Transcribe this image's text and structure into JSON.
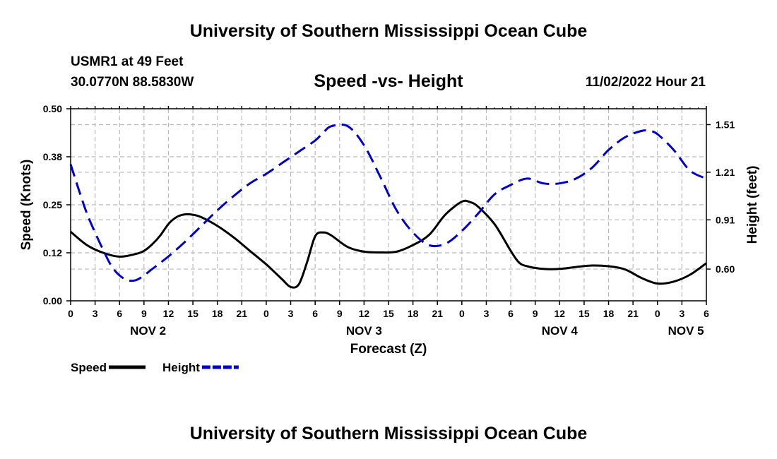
{
  "header": {
    "title": "University of Southern Mississippi Ocean Cube",
    "station": "USMR1 at 49 Feet",
    "coordinates": "30.0770N  88.5830W",
    "datetime": "11/02/2022 Hour 21"
  },
  "footer": {
    "title": "University of Southern Mississippi Ocean Cube"
  },
  "chart_data": {
    "type": "line",
    "title": "Speed -vs- Height",
    "xlabel": "Forecast (Z)",
    "ylabel_left": "Speed (Knots)",
    "ylabel_right": "Height (feet)",
    "x_range_hours": [
      0,
      78
    ],
    "x_ticks_hours": [
      0,
      3,
      6,
      9,
      12,
      15,
      18,
      21,
      24,
      27,
      30,
      33,
      36,
      39,
      42,
      45,
      48,
      51,
      54,
      57,
      60,
      63,
      66,
      69,
      72,
      75,
      78
    ],
    "x_tick_labels": [
      "0",
      "3",
      "6",
      "9",
      "12",
      "15",
      "18",
      "21",
      "0",
      "3",
      "6",
      "9",
      "12",
      "15",
      "18",
      "21",
      "0",
      "3",
      "6",
      "9",
      "12",
      "15",
      "18",
      "21",
      "0",
      "3",
      "6"
    ],
    "day_labels": [
      {
        "label": "NOV 2",
        "hour": 9.5
      },
      {
        "label": "NOV 3",
        "hour": 36
      },
      {
        "label": "NOV 4",
        "hour": 60
      },
      {
        "label": "NOV 5",
        "hour": 75.5
      }
    ],
    "y_left": {
      "range": [
        0,
        0.5
      ],
      "ticks": [
        0,
        0.125,
        0.25,
        0.375,
        0.5
      ],
      "tick_labels": [
        "0.00",
        "0.12",
        "0.25",
        "0.38",
        "0.50"
      ]
    },
    "y_right": {
      "range": [
        0.4,
        1.61
      ],
      "ticks": [
        0.6,
        0.91,
        1.21,
        1.51
      ],
      "tick_labels": [
        "0.60",
        "0.91",
        "1.21",
        "1.51"
      ]
    },
    "grid": true,
    "series": [
      {
        "name": "Speed",
        "axis": "left",
        "color": "#000000",
        "style": "solid",
        "x": [
          0,
          2,
          4,
          6,
          8,
          9,
          10,
          11,
          12,
          13,
          14,
          15,
          16,
          18,
          20,
          22,
          24,
          25,
          26,
          27,
          28,
          29,
          30,
          31,
          32,
          34,
          36,
          38,
          40,
          42,
          44,
          46,
          48,
          49,
          50,
          52,
          54,
          55,
          56,
          58,
          60,
          62,
          64,
          66,
          68,
          70,
          72,
          74,
          76,
          78
        ],
        "y": [
          0.18,
          0.145,
          0.125,
          0.115,
          0.122,
          0.13,
          0.147,
          0.17,
          0.2,
          0.218,
          0.225,
          0.224,
          0.218,
          0.195,
          0.165,
          0.13,
          0.095,
          0.075,
          0.055,
          0.036,
          0.043,
          0.1,
          0.168,
          0.178,
          0.17,
          0.14,
          0.128,
          0.126,
          0.128,
          0.145,
          0.172,
          0.225,
          0.258,
          0.257,
          0.245,
          0.2,
          0.13,
          0.1,
          0.09,
          0.083,
          0.083,
          0.088,
          0.092,
          0.09,
          0.082,
          0.06,
          0.045,
          0.05,
          0.068,
          0.098
        ]
      },
      {
        "name": "Height",
        "axis": "right",
        "color": "#0000cc",
        "style": "dashed",
        "x": [
          0,
          1,
          2,
          3,
          4,
          5,
          6,
          7,
          8,
          9,
          10,
          12,
          14,
          16,
          18,
          20,
          22,
          24,
          26,
          28,
          30,
          31,
          32,
          34,
          36,
          38,
          40,
          42,
          44,
          46,
          48,
          50,
          52,
          54,
          56,
          58,
          60,
          62,
          64,
          66,
          68,
          70,
          71,
          72,
          74,
          76,
          78
        ],
        "y": [
          1.26,
          1.1,
          0.95,
          0.83,
          0.72,
          0.62,
          0.56,
          0.53,
          0.53,
          0.56,
          0.6,
          0.68,
          0.77,
          0.87,
          0.97,
          1.06,
          1.14,
          1.2,
          1.27,
          1.34,
          1.41,
          1.46,
          1.5,
          1.5,
          1.38,
          1.18,
          0.97,
          0.83,
          0.75,
          0.76,
          0.84,
          0.95,
          1.07,
          1.13,
          1.17,
          1.14,
          1.14,
          1.17,
          1.24,
          1.35,
          1.43,
          1.47,
          1.47,
          1.45,
          1.35,
          1.22,
          1.17
        ]
      }
    ],
    "legend": [
      {
        "label": "Speed",
        "series": "Speed"
      },
      {
        "label": "Height",
        "series": "Height"
      }
    ]
  }
}
